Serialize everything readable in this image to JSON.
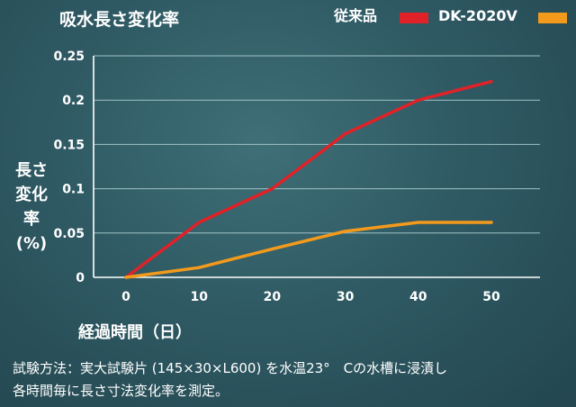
{
  "chart_data": {
    "type": "line",
    "title": "吸水長さ変化率",
    "ylabel_lines": [
      "長さ",
      "変化",
      "率",
      "(%)"
    ],
    "xlabel": "経過時間（日）",
    "xlim": [
      0,
      50
    ],
    "ylim": [
      0,
      0.25
    ],
    "x_ticks": [
      "0",
      "10",
      "20",
      "30",
      "40",
      "50"
    ],
    "y_ticks": [
      "0",
      "0.05",
      "0.1",
      "0.15",
      "0.2",
      "0.25"
    ],
    "grid": true,
    "legend_position": "top-right",
    "series": [
      {
        "name": "従来品",
        "color": "#e02228",
        "x": [
          0,
          10,
          20,
          30,
          40,
          50
        ],
        "y": [
          0,
          0.062,
          0.1,
          0.162,
          0.2,
          0.221
        ]
      },
      {
        "name": "DK-2020V",
        "color": "#f39a1c",
        "x": [
          0,
          10,
          20,
          30,
          40,
          50
        ],
        "y": [
          0,
          0.011,
          0.032,
          0.052,
          0.062,
          0.062
        ]
      }
    ]
  },
  "note_lines": [
    "試験方法：実大試験片 (145×30×L600) を水温23°　Cの水槽に浸漬し",
    "各時間毎に長さ寸法変化率を測定。"
  ]
}
